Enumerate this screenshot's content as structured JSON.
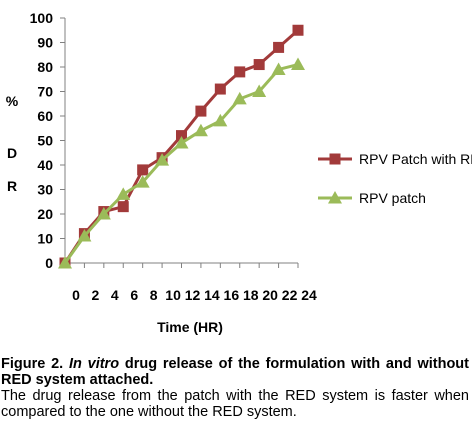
{
  "chart_data": {
    "type": "line",
    "title": "",
    "xlabel": "Time (HR)",
    "ylabel": [
      "%",
      "D",
      "R"
    ],
    "x": [
      0,
      2,
      4,
      6,
      8,
      10,
      12,
      14,
      16,
      18,
      20,
      22,
      24
    ],
    "xticks": [
      "0",
      "2",
      "4",
      "6",
      "8",
      "10",
      "12",
      "14",
      "16",
      "18",
      "20",
      "22",
      "24"
    ],
    "ylim": [
      0,
      100
    ],
    "yticks": [
      "0",
      "10",
      "20",
      "30",
      "40",
      "50",
      "60",
      "70",
      "80",
      "90",
      "100"
    ],
    "grid": false,
    "legend_position": "right",
    "series": [
      {
        "name": "RPV Patch with RED",
        "color": "#a23a3a",
        "marker": "square",
        "values": [
          0,
          12,
          21,
          23,
          38,
          43,
          52,
          62,
          71,
          78,
          81,
          88,
          95
        ]
      },
      {
        "name": "RPV patch",
        "color": "#9bbb59",
        "marker": "triangle",
        "values": [
          0,
          11,
          20,
          28,
          33,
          42,
          49,
          54,
          58,
          67,
          70,
          79,
          81
        ]
      }
    ]
  },
  "caption": {
    "figure_label": "Figure 2.",
    "title_italic": "In vitro",
    "title_rest": "drug release of the formulation with and without RED system attached.",
    "body": "The drug release from the patch with the RED system is faster when compared to the one without the RED system."
  }
}
